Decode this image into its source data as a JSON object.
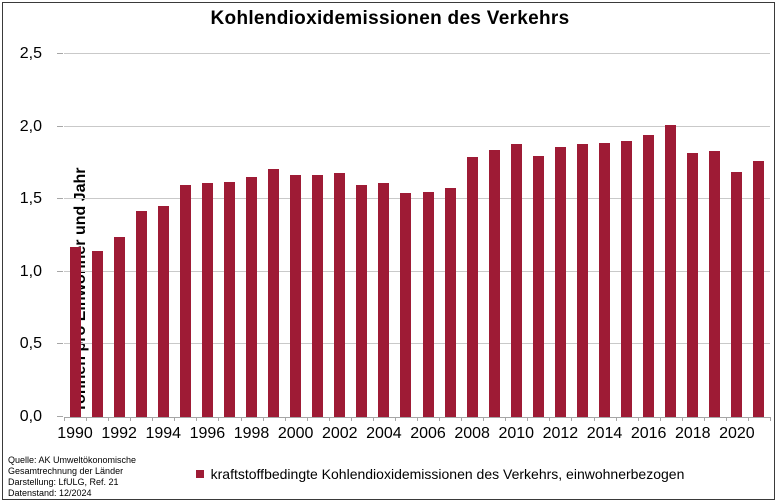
{
  "title": "Kohlendioxidemissionen des Verkehrs",
  "y_axis": {
    "label": "Tonnen pro Einwohner und Jahr",
    "tick_labels": [
      "0,0",
      "0,5",
      "1,0",
      "1,5",
      "2,0",
      "2,5"
    ]
  },
  "legend": {
    "label": "kraftstoffbedingte Kohlendioxidemissionen des Verkehrs, einwohnerbezogen"
  },
  "footer": {
    "lines": [
      "Quelle: AK Umweltökonomische",
      "Gesamtrechnung  der Länder",
      "Darstellung: LfULG, Ref. 21",
      "Datenstand: 12/2024"
    ]
  },
  "colors": {
    "bar": "#9E1B35",
    "grid": "#C9C9C9",
    "axis": "#A6A6A6",
    "border": "#3A3A3A"
  },
  "chart_data": {
    "type": "bar",
    "title": "Kohlendioxidemissionen des Verkehrs",
    "xlabel": "",
    "ylabel": "Tonnen pro Einwohner und Jahr",
    "ylim": [
      0,
      2.5
    ],
    "ytick_step": 0.5,
    "ytick_labels": [
      "0,0",
      "0,5",
      "1,0",
      "1,5",
      "2,0",
      "2,5"
    ],
    "grid": true,
    "legend_position": "bottom",
    "legend_entries": [
      "kraftstoffbedingte Kohlendioxidemissionen des Verkehrs, einwohnerbezogen"
    ],
    "xtick_labeled_years": [
      1990,
      1992,
      1994,
      1996,
      1998,
      2000,
      2002,
      2004,
      2006,
      2008,
      2010,
      2012,
      2014,
      2016,
      2018,
      2020
    ],
    "categories": [
      1990,
      1991,
      1992,
      1993,
      1994,
      1995,
      1996,
      1997,
      1998,
      1999,
      2000,
      2001,
      2002,
      2003,
      2004,
      2005,
      2006,
      2007,
      2008,
      2009,
      2010,
      2011,
      2012,
      2013,
      2014,
      2015,
      2016,
      2017,
      2018,
      2019,
      2020,
      2021
    ],
    "values": [
      1.17,
      1.14,
      1.24,
      1.42,
      1.45,
      1.6,
      1.61,
      1.62,
      1.65,
      1.71,
      1.67,
      1.67,
      1.68,
      1.6,
      1.61,
      1.54,
      1.55,
      1.58,
      1.79,
      1.84,
      1.88,
      1.8,
      1.86,
      1.88,
      1.89,
      1.9,
      1.94,
      2.01,
      1.82,
      1.83,
      1.69,
      1.76
    ]
  }
}
